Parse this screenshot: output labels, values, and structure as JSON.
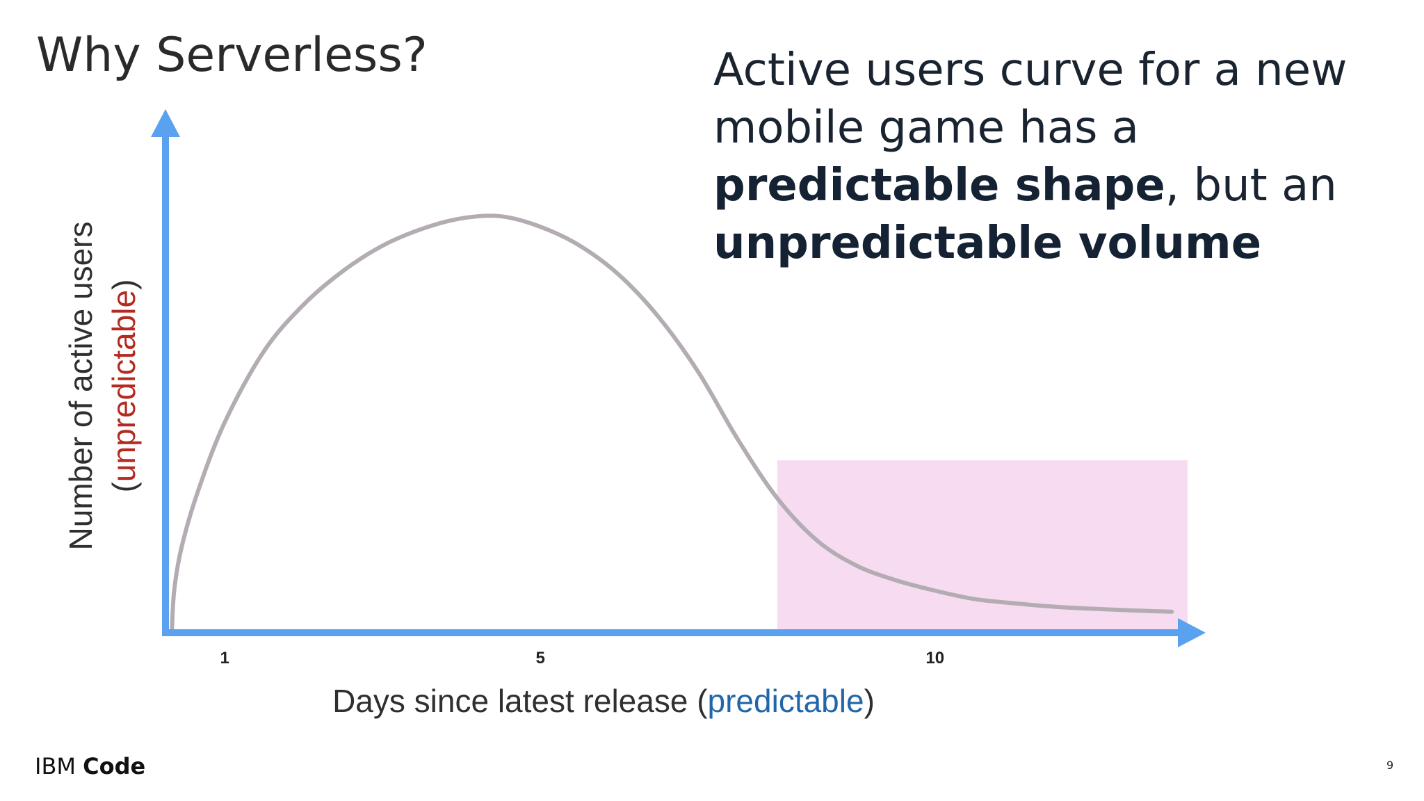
{
  "slide": {
    "title": "Why Serverless?",
    "headline": {
      "t1": "Active users curve for a new mobile game has a ",
      "b1": "predictable shape",
      "t2": ", but an ",
      "b2": "unpredictable volume"
    },
    "brand": {
      "light": "IBM",
      "bold": "Code"
    },
    "page_number": "9"
  },
  "colors": {
    "axis": "#5aa2f0",
    "curve": "#b3adb3",
    "highlight": "#f7dcf1",
    "ylabel_accent": "#b52a20",
    "xlabel_accent": "#2266aa",
    "label_text": "#2f2f2f"
  },
  "chart_data": {
    "type": "line",
    "xlabel": {
      "before": "Days since latest release (",
      "accent": "predictable",
      "after": ")"
    },
    "ylabel": {
      "line1": "Number of active users",
      "line2_before": "(",
      "line2_accent": "unpredictable",
      "line2_after": ")"
    },
    "xlim": [
      0.25,
      13.2
    ],
    "ylim": [
      0,
      1
    ],
    "x_ticks": [
      {
        "value": 1,
        "label": "1"
      },
      {
        "value": 5,
        "label": "5"
      },
      {
        "value": 10,
        "label": "10"
      }
    ],
    "series": [
      {
        "points": [
          [
            0.33,
            0.0
          ],
          [
            0.36,
            0.1
          ],
          [
            0.45,
            0.2
          ],
          [
            0.65,
            0.33
          ],
          [
            1.0,
            0.5
          ],
          [
            1.5,
            0.67
          ],
          [
            2.0,
            0.78
          ],
          [
            2.5,
            0.86
          ],
          [
            3.0,
            0.92
          ],
          [
            3.5,
            0.96
          ],
          [
            4.0,
            0.985
          ],
          [
            4.5,
            0.99
          ],
          [
            5.0,
            0.965
          ],
          [
            5.5,
            0.92
          ],
          [
            6.0,
            0.85
          ],
          [
            6.5,
            0.75
          ],
          [
            7.0,
            0.62
          ],
          [
            7.5,
            0.46
          ],
          [
            8.0,
            0.32
          ],
          [
            8.5,
            0.22
          ],
          [
            9.0,
            0.16
          ],
          [
            9.5,
            0.125
          ],
          [
            10.0,
            0.1
          ],
          [
            10.5,
            0.08
          ],
          [
            11.0,
            0.07
          ],
          [
            11.5,
            0.062
          ],
          [
            12.0,
            0.057
          ],
          [
            12.5,
            0.053
          ],
          [
            13.0,
            0.05
          ]
        ]
      }
    ],
    "highlight_region": {
      "x": [
        8.0,
        13.2
      ],
      "y": [
        0,
        0.41
      ]
    }
  }
}
